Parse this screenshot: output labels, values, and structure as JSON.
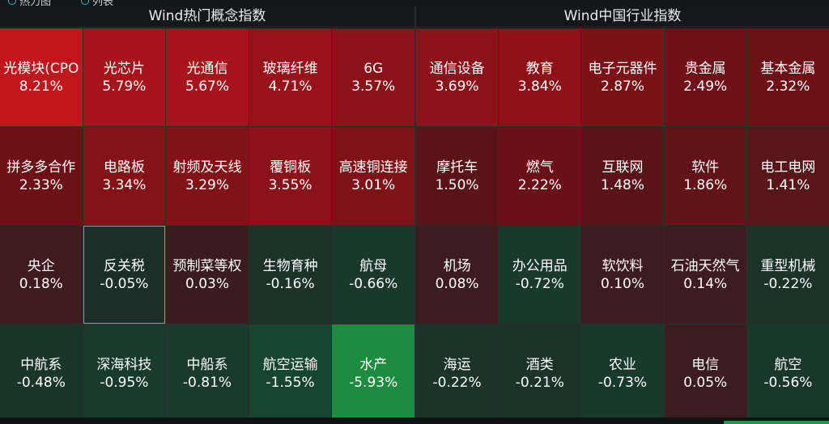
{
  "top_tabs": [
    "热力图",
    "列表"
  ],
  "panels": [
    {
      "id": "left",
      "title": "Wind热门概念指数",
      "cells": [
        {
          "name": "光模块(CPO",
          "pct": "8.21%",
          "color": "#c0161c"
        },
        {
          "name": "光芯片",
          "pct": "5.79%",
          "color": "#a8141b"
        },
        {
          "name": "光通信",
          "pct": "5.67%",
          "color": "#a8141b"
        },
        {
          "name": "玻璃纤维",
          "pct": "4.71%",
          "color": "#971219"
        },
        {
          "name": "6G",
          "pct": "3.57%",
          "color": "#8a1218"
        },
        {
          "name": "拼多多合作",
          "pct": "2.33%",
          "color": "#6e1117"
        },
        {
          "name": "电路板",
          "pct": "3.34%",
          "color": "#851217"
        },
        {
          "name": "射频及天线",
          "pct": "3.29%",
          "color": "#821217"
        },
        {
          "name": "覆铜板",
          "pct": "3.55%",
          "color": "#8a1218"
        },
        {
          "name": "高速铜连接",
          "pct": "3.01%",
          "color": "#7d1217"
        },
        {
          "name": "央企",
          "pct": "0.18%",
          "color": "#3f1b1e"
        },
        {
          "name": "反关税",
          "pct": "-0.05%",
          "color": "#1b2e27",
          "selected": true
        },
        {
          "name": "预制菜等权",
          "pct": "0.03%",
          "color": "#3a1c1f"
        },
        {
          "name": "生物育种",
          "pct": "-0.16%",
          "color": "#1b3329"
        },
        {
          "name": "航母",
          "pct": "-0.66%",
          "color": "#1a382c"
        },
        {
          "name": "中航系",
          "pct": "-0.48%",
          "color": "#1a362b"
        },
        {
          "name": "深海科技",
          "pct": "-0.95%",
          "color": "#193b2e"
        },
        {
          "name": "中船系",
          "pct": "-0.81%",
          "color": "#193a2d"
        },
        {
          "name": "航空运输",
          "pct": "-1.55%",
          "color": "#174630"
        },
        {
          "name": "水产",
          "pct": "-5.93%",
          "color": "#1c8c3f"
        }
      ]
    },
    {
      "id": "right",
      "title": "Wind中国行业指数",
      "cells": [
        {
          "name": "通信设备",
          "pct": "3.69%",
          "color": "#8a1218"
        },
        {
          "name": "教育",
          "pct": "3.84%",
          "color": "#8d1218"
        },
        {
          "name": "电子元器件",
          "pct": "2.87%",
          "color": "#7a1217"
        },
        {
          "name": "贵金属",
          "pct": "2.49%",
          "color": "#701117"
        },
        {
          "name": "基本金属",
          "pct": "2.32%",
          "color": "#6d1117"
        },
        {
          "name": "摩托车",
          "pct": "1.50%",
          "color": "#5a1419"
        },
        {
          "name": "燃气",
          "pct": "2.22%",
          "color": "#6a1117"
        },
        {
          "name": "互联网",
          "pct": "1.48%",
          "color": "#5a1419"
        },
        {
          "name": "软件",
          "pct": "1.86%",
          "color": "#621318"
        },
        {
          "name": "电工电网",
          "pct": "1.41%",
          "color": "#58151a"
        },
        {
          "name": "机场",
          "pct": "0.08%",
          "color": "#3c1c1f"
        },
        {
          "name": "办公用品",
          "pct": "-0.72%",
          "color": "#19392d"
        },
        {
          "name": "软饮料",
          "pct": "0.10%",
          "color": "#3d1c1f"
        },
        {
          "name": "石油天然气",
          "pct": "0.14%",
          "color": "#3e1b1e"
        },
        {
          "name": "重型机械",
          "pct": "-0.22%",
          "color": "#1b3329"
        },
        {
          "name": "海运",
          "pct": "-0.22%",
          "color": "#1b3329"
        },
        {
          "name": "酒类",
          "pct": "-0.21%",
          "color": "#1b3329"
        },
        {
          "name": "农业",
          "pct": "-0.73%",
          "color": "#19392d"
        },
        {
          "name": "电信",
          "pct": "0.05%",
          "color": "#3b1c1f"
        },
        {
          "name": "航空",
          "pct": "-0.56%",
          "color": "#1a372c"
        }
      ]
    }
  ]
}
